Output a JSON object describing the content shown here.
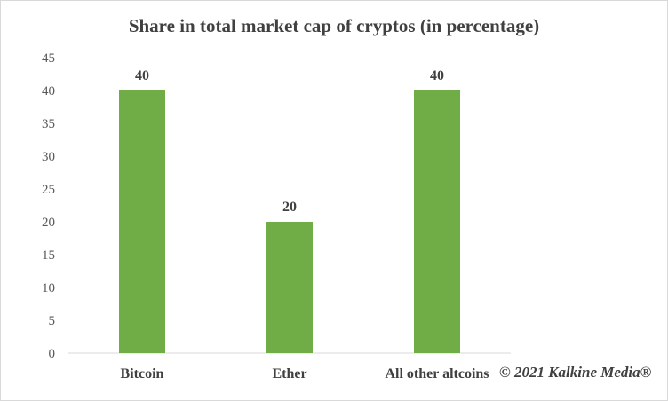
{
  "chart_data": {
    "type": "bar",
    "title": "Share in total market cap of cryptos (in percentage)",
    "categories": [
      "Bitcoin",
      "Ether",
      "All other altcoins"
    ],
    "values": [
      40,
      20,
      40
    ],
    "data_labels": [
      "40",
      "20",
      "40"
    ],
    "y_ticks": [
      "0",
      "5",
      "10",
      "15",
      "20",
      "25",
      "30",
      "35",
      "40",
      "45"
    ],
    "ylim": [
      0,
      45
    ],
    "xlabel": "",
    "ylabel": "",
    "grid": false,
    "legend": "none",
    "bar_color": "#70ad47"
  },
  "watermark": "© 2021 Kalkine Media®"
}
